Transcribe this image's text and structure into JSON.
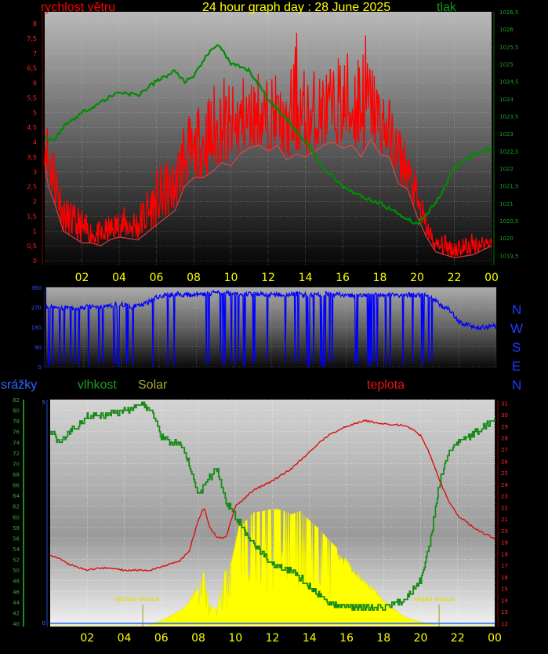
{
  "header": {
    "wind_label": "rychlost větru",
    "title": "24 hour graph day : 28 June 2025",
    "pressure_label": "tlak"
  },
  "direction_labels": [
    "N",
    "W",
    "S",
    "E",
    "N"
  ],
  "bottom_labels": {
    "precip": "srážky",
    "humidity": "vlhkost",
    "solar": "Solar",
    "temperature": "teplota",
    "sunrise": "východ slunce",
    "sunset": "západ slunce"
  },
  "colors": {
    "wind": "#ff0000",
    "pressure": "#008c00",
    "direction": "#0000ff",
    "humidity": "#168c16",
    "solar": "#ffff00",
    "temperature": "#dd1010",
    "precip": "#1e64ff",
    "hour_labels": "#ffff00",
    "title": "#ffff00"
  },
  "chart_data": [
    {
      "type": "line",
      "name": "wind-pressure",
      "x_ticks": [
        "02",
        "04",
        "06",
        "08",
        "10",
        "12",
        "14",
        "16",
        "18",
        "20",
        "22",
        "00"
      ],
      "y_left_ticks": [
        "0",
        "0,5",
        "1",
        "1,5",
        "2",
        "2,5",
        "3",
        "3,5",
        "4",
        "4,5",
        "5",
        "5,5",
        "6",
        "6,5",
        "7",
        "7,5",
        "8"
      ],
      "y_left_range": [
        0,
        8.4
      ],
      "y_right_ticks": [
        "1019,5",
        "1020",
        "1020,5",
        "1021",
        "1021,5",
        "1022",
        "1022,5",
        "1023",
        "1023,5",
        "1024",
        "1024,5",
        "1025",
        "1025,5",
        "1026",
        "1026,5"
      ],
      "y_right_range": [
        1019.35,
        1026.5
      ],
      "grid": true,
      "series": [
        {
          "name": "rychlost větru",
          "axis": "left",
          "hours": [
            0,
            0.2,
            0.5,
            1,
            1.5,
            2,
            2.5,
            3,
            3.5,
            4,
            5,
            6,
            7,
            7.5,
            8,
            8.5,
            9,
            9.5,
            10,
            10.5,
            11,
            11.5,
            12,
            12.5,
            13,
            13.5,
            14,
            14.5,
            15,
            15.5,
            16,
            16.5,
            17,
            17.5,
            18,
            18.5,
            19,
            19.5,
            20,
            20.5,
            21,
            22,
            23,
            24
          ],
          "mean": [
            3.3,
            2.5,
            2.0,
            1.0,
            0.8,
            0.6,
            0.6,
            0.5,
            0.7,
            0.8,
            0.7,
            1.2,
            1.7,
            2.5,
            2.8,
            2.8,
            3.0,
            3.3,
            3.2,
            3.6,
            3.8,
            3.9,
            3.7,
            3.9,
            3.4,
            3.6,
            3.5,
            3.7,
            3.9,
            4.0,
            3.8,
            3.9,
            3.5,
            4.1,
            3.6,
            3.5,
            2.6,
            2.4,
            1.5,
            0.8,
            0.3,
            0.1,
            0.2,
            0.5
          ],
          "gust": [
            5.1,
            4.8,
            4.2,
            2.2,
            1.9,
            1.7,
            1.4,
            1.3,
            1.5,
            1.8,
            1.9,
            3.1,
            3.5,
            5.1,
            4.6,
            5.7,
            5.8,
            6.3,
            5.8,
            6.2,
            6.1,
            6.6,
            6.0,
            6.3,
            5.3,
            7.8,
            6.2,
            6.4,
            6.6,
            6.4,
            7.2,
            6.8,
            8.2,
            6.9,
            6.3,
            5.4,
            4.8,
            3.9,
            2.7,
            1.6,
            0.8,
            0.9,
            0.9,
            0.9
          ]
        },
        {
          "name": "tlak",
          "axis": "right",
          "hours": [
            0,
            0.5,
            1,
            2,
            3,
            4,
            5,
            6,
            7,
            7.5,
            8,
            8.5,
            9,
            9.3,
            10,
            11,
            12,
            13,
            14,
            14.5,
            15,
            16,
            17,
            18,
            19,
            20,
            21,
            22,
            23,
            24
          ],
          "values": [
            1022.9,
            1022.8,
            1023.2,
            1023.6,
            1023.9,
            1024.2,
            1024.1,
            1024.5,
            1024.8,
            1024.5,
            1024.6,
            1025.1,
            1025.4,
            1025.6,
            1025.0,
            1024.8,
            1024.0,
            1023.4,
            1022.8,
            1022.4,
            1022.0,
            1021.5,
            1021.2,
            1021.0,
            1020.7,
            1020.4,
            1021.0,
            1022.0,
            1022.4,
            1022.6
          ]
        }
      ]
    },
    {
      "type": "line",
      "name": "wind-direction",
      "y_ticks": [
        "0",
        "90",
        "180",
        "270",
        "360"
      ],
      "y_range": [
        0,
        360
      ],
      "grid": true,
      "series": [
        {
          "name": "direction",
          "hours": [
            0,
            0.5,
            1,
            1.5,
            2,
            2.5,
            3,
            3.5,
            4,
            4.5,
            5,
            5.5,
            6,
            7,
            8,
            9,
            10,
            11,
            12,
            13,
            14,
            15,
            16,
            17,
            18,
            19,
            20,
            20.5,
            21,
            21.5,
            22,
            22.5,
            23,
            23.5,
            24
          ],
          "values": [
            275,
            270,
            268,
            262,
            268,
            275,
            272,
            278,
            285,
            270,
            280,
            295,
            320,
            330,
            325,
            335,
            330,
            330,
            325,
            330,
            325,
            330,
            325,
            325,
            330,
            325,
            325,
            320,
            280,
            260,
            200,
            190,
            175,
            180,
            185
          ]
        }
      ]
    },
    {
      "type": "line",
      "name": "humidity-temperature-solar",
      "x_ticks": [
        "02",
        "04",
        "06",
        "08",
        "10",
        "12",
        "14",
        "16",
        "18",
        "20",
        "22",
        "00"
      ],
      "y_precip_ticks": [
        "0",
        "5"
      ],
      "y_humidity_ticks": [
        "40",
        "42",
        "44",
        "46",
        "48",
        "50",
        "52",
        "54",
        "56",
        "58",
        "60",
        "62",
        "64",
        "66",
        "68",
        "70",
        "72",
        "74",
        "76",
        "78",
        "80",
        "82"
      ],
      "y_humidity_range": [
        40,
        82
      ],
      "y_temperature_ticks": [
        "12",
        "13",
        "14",
        "15",
        "16",
        "17",
        "18",
        "19",
        "20",
        "21",
        "22",
        "23",
        "24",
        "25",
        "26",
        "27",
        "28",
        "29",
        "30",
        "31"
      ],
      "y_temperature_range": [
        12,
        31.3
      ],
      "grid": true,
      "series": [
        {
          "name": "vlhkost",
          "hours": [
            0,
            0.5,
            1,
            1.5,
            2,
            3,
            4,
            5,
            5.5,
            6,
            6.5,
            7,
            7.5,
            8,
            8.5,
            9,
            9.5,
            10,
            11,
            12,
            13,
            14,
            15,
            16,
            17,
            18,
            19,
            19.5,
            20,
            20.5,
            21,
            21.5,
            22,
            22.5,
            23,
            24
          ],
          "values": [
            76,
            74,
            76,
            77,
            79,
            79,
            80,
            81,
            80,
            75,
            74,
            74,
            70,
            64,
            67,
            69,
            63,
            60,
            55,
            51,
            50,
            47,
            44,
            43,
            43,
            43,
            44,
            46,
            48,
            55,
            66,
            72,
            74,
            75,
            76,
            78
          ]
        },
        {
          "name": "teplota",
          "hours": [
            0,
            0.5,
            1,
            2,
            3,
            4,
            5,
            5.5,
            6,
            7,
            7.5,
            8,
            8.3,
            8.6,
            9,
            9.5,
            10,
            11,
            12,
            13,
            14,
            15,
            16,
            17,
            18,
            19,
            19.5,
            20,
            20.5,
            21,
            21.5,
            22,
            23,
            24
          ],
          "values": [
            17.8,
            17.6,
            17.1,
            16.6,
            16.8,
            16.6,
            16.6,
            16.6,
            16.9,
            17.4,
            18.2,
            20.9,
            22.0,
            20.3,
            19.4,
            19.4,
            22.1,
            23.5,
            24.3,
            25.3,
            26.8,
            28.2,
            29.0,
            29.5,
            29.2,
            29.1,
            28.8,
            28.2,
            26.6,
            24.4,
            22.6,
            21.3,
            20.1,
            19.3
          ]
        },
        {
          "name": "Solar",
          "hours": [
            0,
            5.2,
            5.6,
            6,
            6.5,
            7,
            7.5,
            8,
            8.3,
            8.6,
            9,
            9.4,
            9.8,
            10.2,
            10.6,
            11,
            11.5,
            12,
            12.5,
            13,
            13.5,
            14,
            14.5,
            15,
            15.5,
            16,
            16.5,
            17,
            17.5,
            18,
            18.5,
            19,
            19.5,
            20,
            20.5,
            21,
            24
          ],
          "values": [
            0,
            0,
            0.02,
            0.04,
            0.08,
            0.13,
            0.21,
            0.36,
            0.46,
            0.18,
            0.12,
            0.45,
            0.55,
            0.85,
            0.9,
            0.97,
            0.98,
            1.0,
            0.99,
            0.95,
            0.98,
            0.9,
            0.83,
            0.74,
            0.66,
            0.58,
            0.49,
            0.4,
            0.32,
            0.22,
            0.15,
            0.09,
            0.05,
            0.03,
            0.01,
            0,
            0
          ]
        }
      ],
      "annotations": [
        {
          "label": "východ slunce",
          "hour": 5.0
        },
        {
          "label": "západ slunce",
          "hour": 21.0
        }
      ]
    }
  ]
}
